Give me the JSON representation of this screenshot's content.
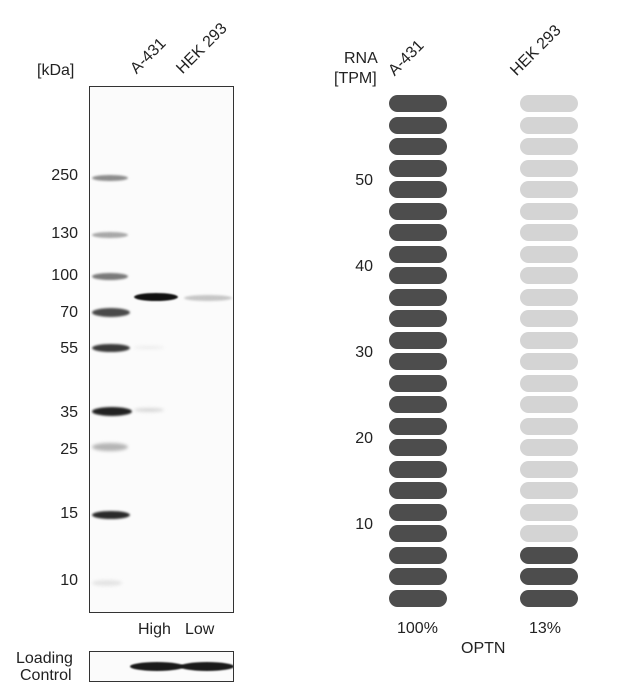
{
  "western_blot": {
    "kda_label": "[kDa]",
    "lanes": [
      "A-431",
      "HEK 293"
    ],
    "markers": [
      "250",
      "130",
      "100",
      "70",
      "55",
      "35",
      "25",
      "15",
      "10"
    ],
    "expression_labels": [
      "High",
      "Low"
    ],
    "loading_control_line1": "Loading",
    "loading_control_line2": "Control"
  },
  "rna": {
    "title_line1": "RNA",
    "title_line2": "[TPM]",
    "cell_lines": [
      "A-431",
      "HEK 293"
    ],
    "axis_ticks": [
      "50",
      "40",
      "30",
      "20",
      "10"
    ],
    "percentages": [
      "100%",
      "13%"
    ],
    "gene": "OPTN",
    "total_segments": 24,
    "filled_segments": [
      24,
      3
    ],
    "colors": {
      "filled": "#4d4d4d",
      "empty": "#d4d4d4"
    }
  }
}
